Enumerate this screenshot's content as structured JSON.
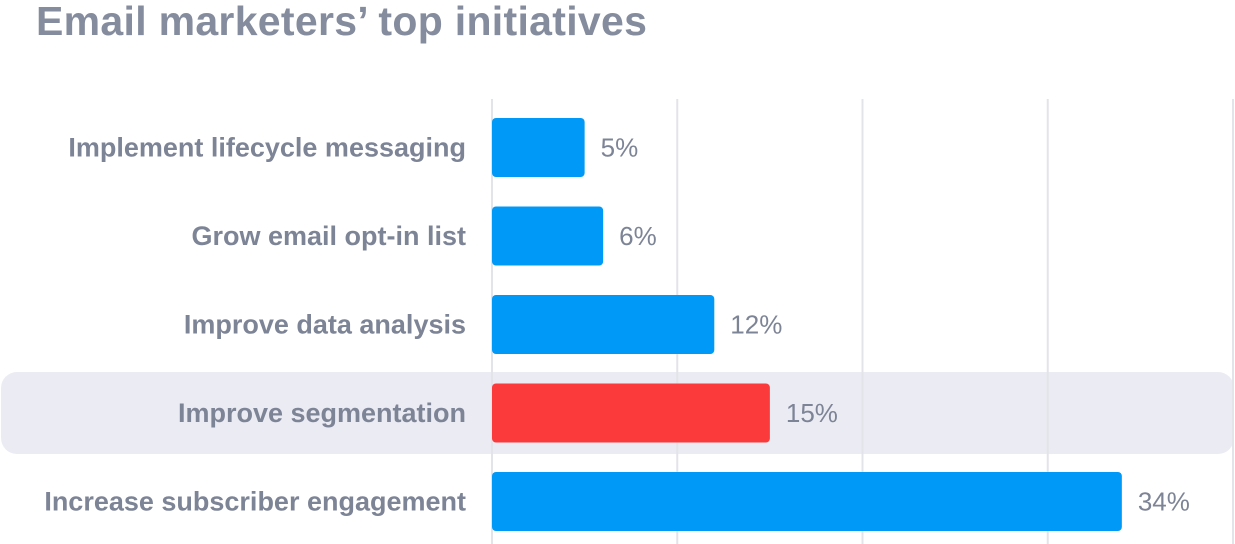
{
  "chart_data": {
    "type": "bar",
    "orientation": "horizontal",
    "title": "Email marketers’ top initiatives",
    "categories": [
      "Implement lifecycle messaging",
      "Grow email opt-in list",
      "Improve data analysis",
      "Improve segmentation",
      "Increase subscriber engagement"
    ],
    "values": [
      5,
      6,
      12,
      15,
      34
    ],
    "value_labels": [
      "5%",
      "6%",
      "12%",
      "15%",
      "34%"
    ],
    "highlighted_category": "Improve segmentation",
    "xlim": [
      0,
      40
    ],
    "grid": true,
    "colors": {
      "bar": "#0199f7",
      "highlight_bar": "#fb3b3b",
      "highlight_band": "#ebebf3",
      "text": "#7d8496",
      "title": "#858c9d",
      "grid": "#e3e4ea"
    }
  }
}
